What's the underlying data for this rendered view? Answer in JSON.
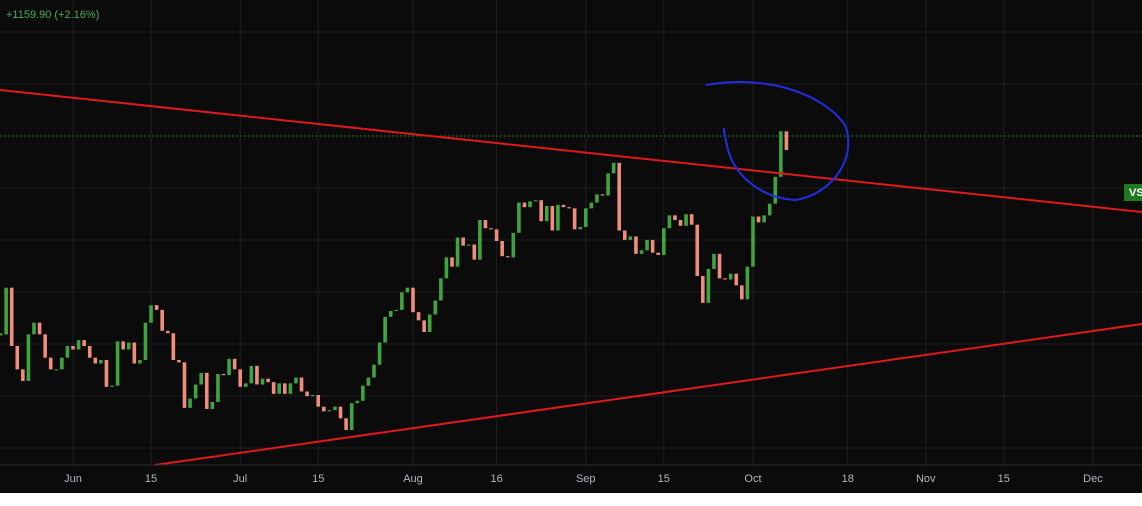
{
  "chart_data": {
    "type": "candlestick",
    "header": "+1159.90 (+2.16%)",
    "badge": "VS",
    "up_color": "#3fa33f",
    "down_color": "#f08c7c",
    "grid": true,
    "xlim": [
      -13.1,
      191.8
    ],
    "ylim": [
      26.8,
      66.66
    ],
    "xticks": [
      {
        "value": 0,
        "label": "Jun"
      },
      {
        "value": 14,
        "label": "15"
      },
      {
        "value": 30,
        "label": "Jul"
      },
      {
        "value": 44,
        "label": "15"
      },
      {
        "value": 61,
        "label": "Aug"
      },
      {
        "value": 76,
        "label": "16"
      },
      {
        "value": 92,
        "label": "Sep"
      },
      {
        "value": 106,
        "label": "15"
      },
      {
        "value": 122,
        "label": "Oct"
      },
      {
        "value": 139,
        "label": "18"
      },
      {
        "value": 153,
        "label": "Nov"
      },
      {
        "value": 167,
        "label": "15"
      },
      {
        "value": 183,
        "label": "Dec"
      }
    ],
    "x": [
      -13,
      -12,
      -11,
      -10,
      -9,
      -8,
      -7,
      -6,
      -5,
      -4,
      -3,
      -2,
      -1,
      0,
      1,
      2,
      3,
      4,
      5,
      6,
      7,
      8,
      9,
      10,
      11,
      12,
      13,
      14,
      15,
      16,
      17,
      18,
      19,
      20,
      21,
      22,
      23,
      24,
      25,
      26,
      27,
      28,
      29,
      30,
      31,
      32,
      33,
      34,
      35,
      36,
      37,
      38,
      39,
      40,
      41,
      42,
      43,
      44,
      45,
      46,
      47,
      48,
      49,
      50,
      51,
      52,
      53,
      54,
      55,
      56,
      57,
      58,
      59,
      60,
      61,
      62,
      63,
      64,
      65,
      66,
      67,
      68,
      69,
      70,
      71,
      72,
      73,
      74,
      75,
      76,
      77,
      78,
      79,
      80,
      81,
      82,
      83,
      84,
      85,
      86,
      87,
      88,
      89,
      90,
      91,
      92,
      93,
      94,
      95,
      96,
      97,
      98,
      99,
      100,
      101,
      102,
      103,
      104,
      105,
      106,
      107,
      108,
      109,
      110,
      111,
      112,
      113,
      114,
      115,
      116,
      117,
      118,
      119,
      120,
      121,
      122,
      123,
      124,
      125,
      126,
      127,
      128
    ],
    "close": [
      38,
      42,
      37,
      35,
      34,
      38,
      39,
      38,
      36,
      35,
      35,
      36,
      37,
      36.7,
      37.5,
      37,
      36,
      35.5,
      35.8,
      33.5,
      33.6,
      37.4,
      36.7,
      37.3,
      35.5,
      35.8,
      39,
      40.5,
      40.1,
      38.3,
      38.1,
      35.8,
      35.6,
      31.7,
      32.5,
      33.7,
      34.7,
      31.6,
      32.2,
      34.6,
      34.5,
      35.9,
      35.0,
      33.5,
      33.8,
      35.3,
      33.7,
      34.2,
      33.9,
      32.9,
      33.8,
      32.9,
      33.8,
      34.3,
      33.1,
      32.7,
      32.8,
      31.8,
      31.4,
      31.5,
      31.8,
      30.8,
      29.8,
      32.1,
      32.3,
      33.6,
      34.3,
      35.4,
      37.3,
      39.5,
      40.0,
      40.1,
      41.6,
      42.0,
      39.9,
      39.2,
      38.2,
      39.7,
      40.9,
      42.8,
      44.6,
      43.8,
      46.3,
      45.6,
      45.7,
      44.4,
      47.8,
      47.1,
      47.0,
      46.0,
      44.7,
      44.6,
      46.7,
      49.3,
      48.9,
      49.4,
      49.5,
      47.7,
      49.0,
      46.9,
      49.1,
      48.9,
      48.8,
      47.0,
      47.2,
      48.8,
      49.3,
      50.0,
      49.9,
      51.8,
      52.7,
      46.9,
      46.1,
      46.4,
      44.9,
      45.2,
      46.1,
      45.0,
      44.8,
      47.1,
      48.2,
      47.8,
      47.3,
      48.3,
      47.4,
      43.0,
      40.7,
      43.6,
      44.9,
      42.8,
      42.7,
      43.2,
      42.2,
      41.0,
      43.8,
      48.1,
      47.6,
      48.2,
      49.2,
      51.5,
      55.4,
      53.8
    ]
  }
}
